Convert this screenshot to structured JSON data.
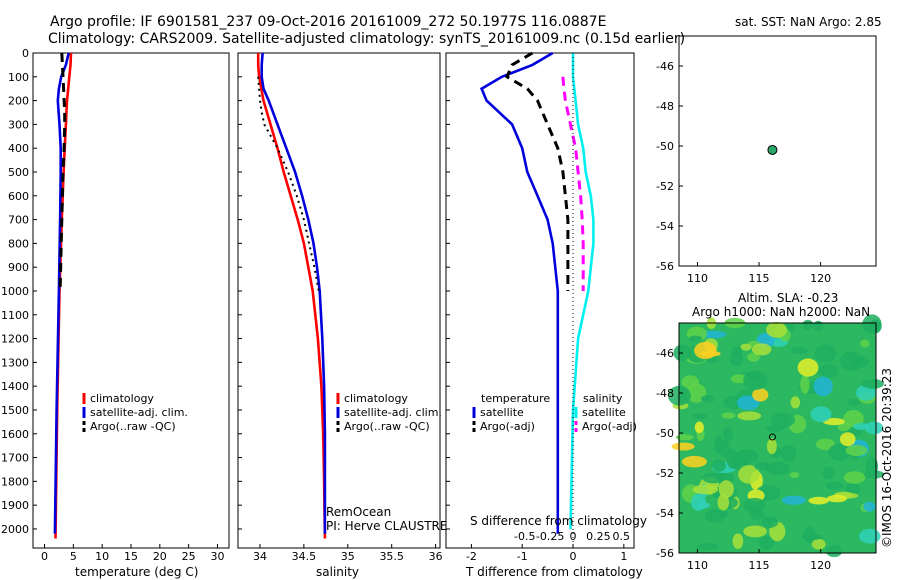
{
  "header": {
    "title_line1": "Argo profile: IF 6901581_237 09-Oct-2016 20161009_272 50.1977S 116.0887E",
    "title_line2": "Climatology: CARS2009. Satellite-adjusted climatology: synTS_20161009.nc (0.15d earlier)"
  },
  "colors": {
    "climatology": "#ff0000",
    "satellite": "#0000dd",
    "argo": "#000000",
    "sat_salinity": "#00f0f0",
    "argo_salinity_diff": "#ff00ff",
    "float_marker": "#2aa86a"
  },
  "chart_data": [
    {
      "type": "line",
      "panel": "temperature",
      "xlabel": "temperature (deg C)",
      "ylabel": "",
      "xlim": [
        -2,
        32
      ],
      "ylim": [
        2080,
        0
      ],
      "x_ticks": [
        0,
        5,
        10,
        15,
        20,
        25,
        30
      ],
      "y_ticks": [
        0,
        100,
        200,
        300,
        400,
        500,
        600,
        700,
        800,
        900,
        1000,
        1100,
        1200,
        1300,
        1400,
        1500,
        1600,
        1700,
        1800,
        1900,
        2000
      ],
      "legend": {
        "placement": "lower-middle",
        "entries": [
          "climatology",
          "satellite-adj. clim.",
          "Argo(..raw -QC)"
        ]
      },
      "series": [
        {
          "name": "climatology",
          "color": "#ff0000",
          "style": "solid",
          "depth": [
            0,
            50,
            100,
            150,
            200,
            300,
            400,
            500,
            700,
            1000,
            1500,
            2040
          ],
          "values": [
            4.6,
            4.5,
            4.3,
            4.1,
            3.9,
            3.7,
            3.5,
            3.3,
            3.0,
            2.6,
            2.2,
            1.9
          ]
        },
        {
          "name": "satellite-adj. clim.",
          "color": "#0000dd",
          "style": "solid",
          "depth": [
            0,
            50,
            100,
            150,
            200,
            300,
            400,
            500,
            700,
            1000,
            1500,
            2020
          ],
          "values": [
            4.2,
            3.7,
            2.9,
            2.5,
            2.3,
            2.6,
            2.8,
            2.8,
            2.7,
            2.5,
            2.1,
            1.8
          ]
        },
        {
          "name": "Argo(..raw -QC)",
          "color": "#000000",
          "style": "dashed",
          "depth": [
            0,
            50,
            100,
            150,
            200,
            250,
            300,
            400,
            500,
            600,
            700,
            800,
            900,
            1000
          ],
          "values": [
            3.0,
            3.1,
            3.2,
            3.3,
            3.4,
            3.5,
            3.5,
            3.4,
            3.2,
            3.1,
            3.0,
            2.9,
            2.8,
            2.7
          ]
        }
      ]
    },
    {
      "type": "line",
      "panel": "salinity",
      "xlabel": "salinity",
      "ylabel": "",
      "xlim": [
        33.75,
        36.05
      ],
      "ylim": [
        2080,
        0
      ],
      "x_ticks": [
        34,
        34.5,
        35,
        35.5,
        36
      ],
      "legend": {
        "placement": "lower-middle",
        "entries": [
          "climatology",
          "satellite-adj. clim.",
          "Argo(..raw -QC)"
        ]
      },
      "annotations": [
        "RemOcean",
        "PI: Herve CLAUSTRE"
      ],
      "series": [
        {
          "name": "climatology",
          "color": "#ff0000",
          "style": "solid",
          "depth": [
            0,
            50,
            100,
            200,
            300,
            400,
            500,
            600,
            700,
            800,
            900,
            1000,
            1200,
            1400,
            1600,
            1800,
            2040
          ],
          "values": [
            33.98,
            33.98,
            33.99,
            34.04,
            34.12,
            34.2,
            34.27,
            34.35,
            34.43,
            34.5,
            34.55,
            34.6,
            34.66,
            34.7,
            34.72,
            34.73,
            34.74
          ]
        },
        {
          "name": "satellite-adj. clim.",
          "color": "#0000dd",
          "style": "solid",
          "depth": [
            0,
            50,
            100,
            150,
            200,
            300,
            400,
            500,
            600,
            700,
            800,
            900,
            1000,
            1200,
            1400,
            1600,
            1800,
            2020
          ],
          "values": [
            34.03,
            34.02,
            34.02,
            34.04,
            34.1,
            34.2,
            34.3,
            34.4,
            34.48,
            34.55,
            34.61,
            34.65,
            34.68,
            34.71,
            34.73,
            34.74,
            34.74,
            34.74
          ]
        },
        {
          "name": "Argo(..raw -QC)",
          "color": "#000000",
          "style": "dotted",
          "depth": [
            100,
            150,
            200,
            250,
            300,
            400,
            500,
            600,
            700,
            800,
            900,
            1000
          ],
          "values": [
            33.98,
            33.99,
            34.0,
            34.02,
            34.05,
            34.2,
            34.32,
            34.42,
            34.5,
            34.56,
            34.62,
            34.67
          ]
        }
      ]
    },
    {
      "type": "line",
      "panel": "difference",
      "xlabel": "T difference from climatology",
      "title_top": "S difference from climatology",
      "xlim": [
        -2.5,
        1.2
      ],
      "ylim": [
        2080,
        0
      ],
      "x_ticks_T": [
        -2,
        -1,
        0,
        1
      ],
      "x_ticks_S": [
        "-0.5",
        "-0.25",
        "0",
        "0.25",
        "0.5"
      ],
      "legend": {
        "placement": "lower-middle",
        "headers": [
          "temperature",
          "salinity"
        ],
        "entries": [
          "satellite",
          "Argo(-adj)",
          "satellite",
          "Argo(-adj)"
        ]
      },
      "series": [
        {
          "name": "temperature satellite",
          "color": "#0000dd",
          "style": "solid",
          "depth": [
            0,
            50,
            100,
            150,
            200,
            300,
            400,
            500,
            600,
            700,
            800,
            1000,
            1500,
            2020
          ],
          "values": [
            -0.4,
            -0.8,
            -1.4,
            -1.8,
            -1.7,
            -1.2,
            -1.0,
            -0.9,
            -0.7,
            -0.5,
            -0.4,
            -0.3,
            -0.3,
            -0.3
          ]
        },
        {
          "name": "temperature Argo(-adj)",
          "color": "#000000",
          "style": "dashed",
          "depth": [
            0,
            50,
            100,
            150,
            200,
            300,
            400,
            500,
            600,
            700,
            800,
            900,
            1000
          ],
          "values": [
            -0.8,
            -1.2,
            -1.3,
            -0.9,
            -0.7,
            -0.5,
            -0.3,
            -0.2,
            -0.15,
            -0.1,
            -0.1,
            -0.1,
            -0.1
          ]
        },
        {
          "name": "salinity satellite",
          "color": "#00f0f0",
          "style": "solid",
          "depth": [
            0,
            100,
            200,
            300,
            400,
            500,
            600,
            700,
            800,
            900,
            1000,
            1100,
            1200,
            1500,
            2000
          ],
          "values": [
            0.0,
            0.0,
            0.05,
            0.1,
            0.2,
            0.25,
            0.35,
            0.4,
            0.4,
            0.35,
            0.3,
            0.2,
            0.1,
            0.0,
            -0.05
          ]
        },
        {
          "name": "salinity Argo(-adj)",
          "color": "#ff00ff",
          "style": "dashed",
          "depth": [
            100,
            150,
            200,
            250,
            300,
            400,
            500,
            600,
            700,
            800,
            900,
            1000
          ],
          "values": [
            -0.2,
            -0.18,
            -0.15,
            -0.1,
            -0.05,
            0.05,
            0.1,
            0.15,
            0.18,
            0.2,
            0.2,
            0.2
          ]
        }
      ]
    },
    {
      "type": "scatter",
      "panel": "sst_map",
      "title": "sat. SST: NaN Argo: 2.85",
      "xlim": [
        108.5,
        124.5
      ],
      "ylim": [
        -56,
        -44.5
      ],
      "x_ticks": [
        110,
        115,
        120
      ],
      "y_ticks": [
        -46,
        -48,
        -50,
        -52,
        -54,
        -56
      ],
      "points": [
        {
          "x": 116.0887,
          "y": -50.1977
        }
      ]
    },
    {
      "type": "heatmap",
      "panel": "sla_map",
      "title_line1": "Altim. SLA: -0.23",
      "title_line2": "Argo h1000: NaN h2000: NaN",
      "xlim": [
        108.5,
        124.5
      ],
      "ylim": [
        -56,
        -44.5
      ],
      "x_ticks": [
        110,
        115,
        120
      ],
      "y_ticks": [
        -46,
        -48,
        -50,
        -52,
        -54,
        -56
      ],
      "point": {
        "x": 116.0887,
        "y": -50.1977
      }
    }
  ],
  "footer": {
    "stamp": "©IMOS 16-Oct-2016 20:39:23"
  }
}
